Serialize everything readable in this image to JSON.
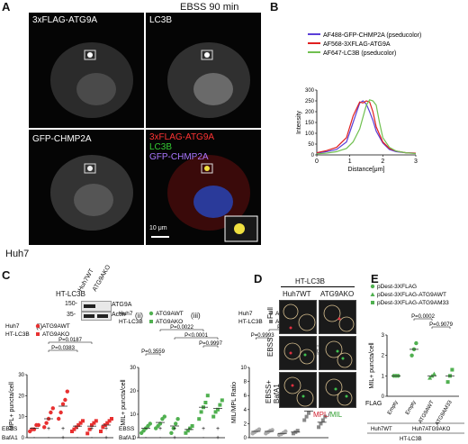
{
  "figure": {
    "title": "EBSS 90 min",
    "panels": {
      "A": {
        "letter": "A",
        "images": [
          {
            "label": "3xFLAG-ATG9A"
          },
          {
            "label": "LC3B"
          },
          {
            "label": "GFP-CHMP2A"
          },
          {
            "label_lines": [
              "3xFLAG-ATG9A",
              "LC3B",
              "GFP-CHMP2A"
            ],
            "label_colors": [
              "#ff3333",
              "#33cc33",
              "#aa66ff"
            ]
          }
        ],
        "scale_bar": "10 μm",
        "cell_line": "Huh7"
      },
      "B": {
        "letter": "B"
      },
      "C": {
        "letter": "C",
        "blot": {
          "header": "HT-LC3B",
          "lanes": [
            "Huh7WT",
            "ATG9AKO"
          ],
          "bands": [
            "ATG9A",
            "Actin"
          ],
          "mw": [
            "150-",
            "35-"
          ]
        },
        "subpanels": [
          "(i)",
          "(ii)",
          "(iii)"
        ],
        "treatment_rows": [
          "EBSS",
          "BafA1"
        ],
        "treatment_signs": {
          "EBSS": [
            "-",
            "+",
            "+",
            "-",
            "+",
            "+"
          ],
          "BafA1": [
            "-",
            "-",
            "+",
            "-",
            "-",
            "+"
          ]
        }
      },
      "D": {
        "letter": "D",
        "header": "HT-LC3B",
        "columns": [
          "Huh7WT",
          "ATG9AKO"
        ],
        "rows": [
          "Full",
          "EBSS",
          "EBSS+ BafA1"
        ],
        "legend": [
          "MPL",
          "/",
          "MIL"
        ]
      },
      "E": {
        "letter": "E"
      }
    }
  },
  "chart_data": [
    {
      "panel": "B",
      "type": "line",
      "xlabel": "Distance[μm]",
      "ylabel": "Intensity",
      "xlim": [
        0,
        3
      ],
      "ylim": [
        0,
        300
      ],
      "xticks": [
        0,
        1,
        2,
        3
      ],
      "yticks": [
        0,
        50,
        100,
        150,
        200,
        250,
        300
      ],
      "legend_position": "top",
      "series": [
        {
          "name": "AF488-GFP-CHMP2A (pseducolor)",
          "color": "#5b3fd8",
          "x": [
            0,
            0.3,
            0.6,
            0.9,
            1.1,
            1.3,
            1.4,
            1.5,
            1.6,
            1.7,
            1.8,
            2.0,
            2.2,
            2.4,
            2.7,
            3.0
          ],
          "y": [
            8,
            15,
            25,
            60,
            150,
            240,
            250,
            235,
            200,
            160,
            110,
            55,
            25,
            15,
            10,
            8
          ]
        },
        {
          "name": "AF568-3XFLAG-ATG9A",
          "color": "#e02020",
          "x": [
            0,
            0.3,
            0.6,
            0.9,
            1.1,
            1.3,
            1.4,
            1.5,
            1.6,
            1.7,
            1.8,
            2.0,
            2.2,
            2.4,
            2.7,
            3.0
          ],
          "y": [
            10,
            20,
            35,
            80,
            180,
            245,
            240,
            250,
            245,
            200,
            130,
            60,
            30,
            18,
            10,
            8
          ]
        },
        {
          "name": "AF647-LC3B (pseducolor)",
          "color": "#70c050",
          "x": [
            0,
            0.3,
            0.6,
            0.9,
            1.1,
            1.3,
            1.5,
            1.6,
            1.7,
            1.8,
            1.9,
            2.0,
            2.2,
            2.4,
            2.7,
            3.0
          ],
          "y": [
            5,
            8,
            15,
            30,
            60,
            120,
            230,
            255,
            250,
            230,
            150,
            80,
            35,
            18,
            10,
            6
          ]
        }
      ]
    },
    {
      "panel": "C(i)",
      "type": "scatter",
      "ylabel": "MPL+ puncta/cell",
      "ylim": [
        0,
        30
      ],
      "yticks": [
        0,
        10,
        20,
        30
      ],
      "legend": {
        "header": [
          "Huh7",
          "HT-LC3B"
        ],
        "entries": [
          {
            "name": "ATG9AWT",
            "color": "#e83030"
          },
          {
            "name": "ATG9AKO",
            "color": "#e83030"
          }
        ]
      },
      "pvalues": [
        {
          "text": "P=0.0187",
          "from": 1,
          "to": 4
        },
        {
          "text": "P=0.0383",
          "from": 1,
          "to": 3
        }
      ],
      "groups": [
        {
          "color": "#e83030",
          "marker": "circle",
          "values": [
            3,
            4,
            4,
            6,
            6
          ],
          "mean": 4.5
        },
        {
          "color": "#e83030",
          "marker": "circle",
          "values": [
            5,
            7,
            9,
            12,
            14
          ],
          "mean": 9
        },
        {
          "color": "#e83030",
          "marker": "circle",
          "values": [
            9,
            12,
            16,
            18,
            22
          ],
          "mean": 15
        },
        {
          "color": "#e83030",
          "marker": "square",
          "values": [
            3,
            4,
            5,
            6,
            7,
            8
          ],
          "mean": 5.5
        },
        {
          "color": "#e83030",
          "marker": "square",
          "values": [
            2,
            4,
            6,
            7,
            8
          ],
          "mean": 5.5
        },
        {
          "color": "#e83030",
          "marker": "square",
          "values": [
            3,
            5,
            6,
            7,
            8,
            9
          ],
          "mean": 6
        }
      ]
    },
    {
      "panel": "C(ii)",
      "type": "scatter",
      "ylabel": "MIL+ puncta/cell",
      "ylim": [
        0,
        30
      ],
      "yticks": [
        0,
        10,
        20,
        30
      ],
      "legend": {
        "header": [
          "Huh7",
          "HT-LC3B"
        ],
        "entries": [
          {
            "name": "ATG9AWT",
            "color": "#50b050"
          },
          {
            "name": "ATG9AKO",
            "color": "#50b050"
          }
        ]
      },
      "pvalues": [
        {
          "text": "P=0.0022",
          "from": 1,
          "to": 4
        },
        {
          "text": "P<0.0001",
          "from": 2,
          "to": 5
        },
        {
          "text": "P=0.9997",
          "from": 4,
          "to": 5
        },
        {
          "text": "P=0.3559",
          "from": 0,
          "to": 1
        }
      ],
      "groups": [
        {
          "color": "#50b050",
          "marker": "circle",
          "values": [
            2,
            3,
            4,
            5,
            6
          ],
          "mean": 4
        },
        {
          "color": "#50b050",
          "marker": "circle",
          "values": [
            4,
            5,
            6,
            8,
            9
          ],
          "mean": 6.5
        },
        {
          "color": "#50b050",
          "marker": "circle",
          "values": [
            2,
            4,
            6,
            8
          ],
          "mean": 5
        },
        {
          "color": "#50b050",
          "marker": "square",
          "values": [
            2,
            3,
            4,
            5
          ],
          "mean": 3.5
        },
        {
          "color": "#50b050",
          "marker": "square",
          "values": [
            8,
            11,
            13,
            15,
            18
          ],
          "mean": 13
        },
        {
          "color": "#50b050",
          "marker": "square",
          "values": [
            9,
            11,
            12,
            14,
            16
          ],
          "mean": 12.5
        }
      ]
    },
    {
      "panel": "C(iii)",
      "type": "scatter",
      "ylabel": "MIL/MPL Ratio",
      "ylim": [
        0,
        10
      ],
      "yticks": [
        0,
        2,
        4,
        6,
        8,
        10
      ],
      "legend": {
        "header": [
          "Huh7",
          "HT-LC3B"
        ],
        "entries": [
          {
            "name": "ATG9AWT",
            "color": "#999999"
          },
          {
            "name": "ATG9AKO",
            "color": "#777777"
          }
        ]
      },
      "pvalues": [
        {
          "text": "P<0.0001",
          "from": 1,
          "to": 4
        },
        {
          "text": "P=0.9993",
          "from": 0,
          "to": 1
        },
        {
          "text": "P<0.0001",
          "from": 2,
          "to": 5
        },
        {
          "text": "P=0.0214",
          "from": 4,
          "to": 5
        }
      ],
      "groups": [
        {
          "color": "#aaaaaa",
          "marker": "circle",
          "values": [
            0.6,
            0.8,
            1.0,
            1.2
          ],
          "mean": 0.9
        },
        {
          "color": "#aaaaaa",
          "marker": "circle",
          "values": [
            0.6,
            0.8,
            1.0,
            1.1
          ],
          "mean": 0.9
        },
        {
          "color": "#aaaaaa",
          "marker": "circle",
          "values": [
            0.4,
            0.5,
            0.7,
            0.9
          ],
          "mean": 0.6
        },
        {
          "color": "#888888",
          "marker": "square",
          "values": [
            0.6,
            0.8,
            1.0
          ],
          "mean": 0.8
        },
        {
          "color": "#888888",
          "marker": "square",
          "values": [
            2.5,
            3.0,
            3.5,
            4.5,
            5.5
          ],
          "mean": 3.8
        },
        {
          "color": "#888888",
          "marker": "square",
          "values": [
            1.5,
            2.0,
            2.5,
            3.0
          ],
          "mean": 2.2
        }
      ]
    },
    {
      "panel": "E",
      "type": "scatter",
      "ylabel": "MIL+ puncta/cell",
      "ylim": [
        0,
        3
      ],
      "yticks": [
        0,
        1,
        2,
        3
      ],
      "categories": [
        "Empty",
        "Empty",
        "ATG9AWT",
        "ATG9AM33"
      ],
      "xrow_label": "FLAG",
      "legend": [
        {
          "name": "pDest-3XFLAG",
          "color": "#50b050",
          "marker": "circle"
        },
        {
          "name": "pDest-3XFLAG-ATG9AWT",
          "color": "#50b050",
          "marker": "triangle"
        },
        {
          "name": "pDest-3XFLAG-ATG9AM33",
          "color": "#50b050",
          "marker": "square"
        }
      ],
      "pvalues": [
        {
          "text": "P=0.0002",
          "from": 1,
          "to": 2
        },
        {
          "text": "P=0.9079",
          "from": 2,
          "to": 3
        }
      ],
      "groups": [
        {
          "color": "#50b050",
          "marker": "circle",
          "values": [
            1.0,
            1.0,
            1.0
          ],
          "mean": 1.0
        },
        {
          "color": "#50b050",
          "marker": "circle",
          "values": [
            2.0,
            2.3,
            2.6
          ],
          "mean": 2.3
        },
        {
          "color": "#50b050",
          "marker": "triangle",
          "values": [
            0.9,
            1.0,
            1.1
          ],
          "mean": 1.0
        },
        {
          "color": "#50b050",
          "marker": "square",
          "values": [
            0.7,
            1.0,
            1.3
          ],
          "mean": 1.0
        }
      ],
      "bottom_labels": [
        "Huh7WT",
        "Huh7ATG9AKO",
        "HT-LC3B"
      ]
    }
  ]
}
